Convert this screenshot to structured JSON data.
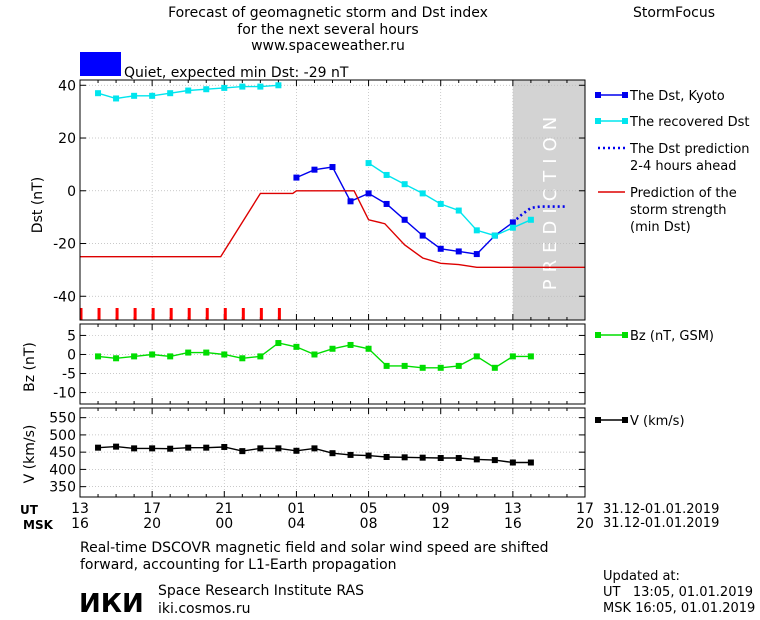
{
  "header": {
    "title_lines": [
      "Forecast of geomagnetic storm and Dst index",
      "for the next several hours",
      "www.spaceweather.ru"
    ],
    "brand": "StormFocus",
    "status": "Quiet, expected min Dst: -29 nT",
    "status_color": "#0000ff"
  },
  "time_axis": {
    "ut_label": "UT",
    "msk_label": "MSK",
    "ut_ticks": [
      "13",
      "17",
      "21",
      "01",
      "05",
      "09",
      "13",
      "17"
    ],
    "msk_ticks": [
      "16",
      "20",
      "00",
      "04",
      "08",
      "12",
      "16",
      "20"
    ],
    "date_range_ut": "31.12-01.01.2019",
    "date_range_msk": "31.12-01.01.2019"
  },
  "chart_data": [
    {
      "type": "line",
      "ylabel": "Dst (nT)",
      "ylim": [
        -49,
        42
      ],
      "xlim": [
        13,
        41
      ],
      "yticks": [
        40,
        20,
        0,
        -20,
        -40
      ],
      "prediction_region": {
        "x": [
          37,
          41
        ],
        "label": "PREDICTION"
      },
      "series": [
        {
          "name": "The Dst, Kyoto",
          "color": "#0000ee",
          "marker": "square",
          "x": [
            25,
            26,
            27,
            28,
            29,
            30,
            31,
            32,
            33,
            34,
            35,
            36,
            37
          ],
          "y": [
            5,
            8,
            9,
            -4,
            -1,
            -5,
            -11,
            -17,
            -22,
            -23,
            -24,
            -17,
            -12
          ]
        },
        {
          "name": "The recovered Dst",
          "color": "#00e5ee",
          "marker": "square",
          "x": [
            14,
            15,
            16,
            17,
            18,
            19,
            20,
            21,
            22,
            23,
            24
          ],
          "y": [
            37,
            35,
            36,
            36,
            37,
            38,
            38.5,
            39,
            39.5,
            39.5,
            40
          ]
        },
        {
          "name": "The recovered Dst",
          "color": "#00e5ee",
          "marker": "square",
          "segment": 2,
          "x": [
            29,
            30,
            31,
            32,
            33,
            34,
            35,
            36,
            37,
            38
          ],
          "y": [
            10.5,
            6,
            2.5,
            -1,
            -5,
            -7.5,
            -15,
            -17,
            -14,
            -11
          ]
        },
        {
          "name": "The Dst prediction 2-4 hours ahead",
          "color": "#0000ee",
          "style": "dotted",
          "x": [
            37,
            37.5,
            38,
            38.5,
            39,
            40
          ],
          "y": [
            -12,
            -9,
            -6.5,
            -6,
            -6,
            -6
          ]
        },
        {
          "name": "Prediction of the storm strength (min Dst)",
          "color": "#dd0000",
          "x": [
            13,
            20.8,
            23,
            24.8,
            25,
            28.2,
            29,
            29.9,
            31,
            32,
            33,
            34,
            35,
            41
          ],
          "y": [
            -25,
            -25,
            -1,
            -1,
            0,
            0,
            -11,
            -12.5,
            -20.5,
            -25.5,
            -27.5,
            -28,
            -29,
            -29
          ]
        }
      ],
      "red_ticks_x": [
        13,
        14,
        15,
        16,
        17,
        18,
        19,
        20,
        21,
        22,
        23,
        24
      ]
    },
    {
      "type": "line",
      "ylabel": "Bz (nT)",
      "ylim": [
        -13,
        8
      ],
      "yticks": [
        5,
        0,
        -5,
        -10
      ],
      "series": [
        {
          "name": "Bz (nT, GSM)",
          "color": "#00dd00",
          "marker": "square",
          "x": [
            14,
            15,
            16,
            17,
            18,
            19,
            20,
            21,
            22,
            23,
            24,
            25,
            26,
            27,
            28,
            29,
            30,
            31,
            32,
            33,
            34,
            35,
            36,
            37,
            38
          ],
          "y": [
            -0.5,
            -1,
            -0.5,
            0,
            -0.5,
            0.5,
            0.5,
            0,
            -1,
            -0.5,
            3,
            2,
            0,
            1.5,
            2.5,
            1.5,
            -3,
            -3,
            -3.5,
            -3.5,
            -3,
            -0.5,
            -3.5,
            -0.5,
            -0.5
          ]
        }
      ]
    },
    {
      "type": "line",
      "ylabel": "V (km/s)",
      "ylim": [
        320,
        578
      ],
      "yticks": [
        550,
        500,
        450,
        400,
        350
      ],
      "series": [
        {
          "name": "V (km/s)",
          "color": "#000000",
          "marker": "square",
          "x": [
            14,
            15,
            16,
            17,
            18,
            19,
            20,
            21,
            22,
            23,
            24,
            25,
            26,
            27,
            28,
            29,
            30,
            31,
            32,
            33,
            34,
            35,
            36,
            37,
            38
          ],
          "y": [
            463,
            466,
            461,
            461,
            460,
            463,
            463,
            465,
            453,
            461,
            461,
            454,
            461,
            447,
            442,
            440,
            436,
            435,
            434,
            433,
            433,
            429,
            427,
            420,
            420
          ]
        }
      ]
    }
  ],
  "footer": {
    "note_lines": [
      "Real-time DSCOVR magnetic field and solar wind speed are shifted",
      "forward, accounting for L1-Earth propagation"
    ],
    "logo_text": "ИКИ",
    "institute": "Space Research Institute RAS",
    "site": "iki.cosmos.ru",
    "updated_label": "Updated at:",
    "updated_ut": "UT   13:05, 01.01.2019",
    "updated_msk": "MSK 16:05, 01.01.2019"
  }
}
